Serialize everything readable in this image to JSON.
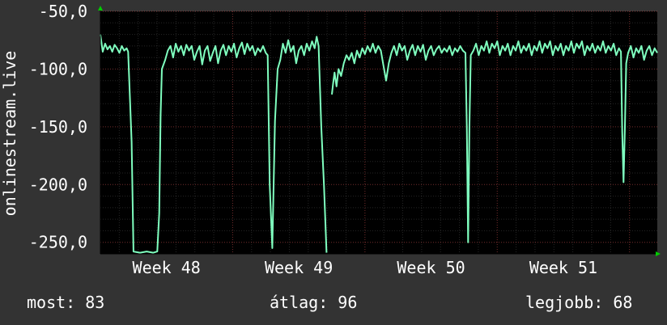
{
  "colors": {
    "background": "#333333",
    "plot_background": "#000000",
    "line": "#7fffbf",
    "grid_major": "#ff3333",
    "grid_minor": "#ffffff",
    "axis_arrow": "#00cc00",
    "text": "#ffffff"
  },
  "stats": {
    "current": "most: 83",
    "average": "átlag: 96",
    "best": "legjobb: 68"
  },
  "chart_data": {
    "type": "line",
    "title": "",
    "xlabel": "",
    "ylabel": "onlinestream.live",
    "ylim": [
      -260,
      -50
    ],
    "xlim": [
      0,
      4.21
    ],
    "grid": true,
    "y_ticks": [
      -50,
      -100,
      -150,
      -200,
      -250
    ],
    "y_tick_labels": [
      "-50,0",
      "-100,0",
      "-150,0",
      "-200,0",
      "-250,0"
    ],
    "x_ticks": [
      0.5,
      1.5,
      2.5,
      3.5
    ],
    "x_tick_labels": [
      "Week 48",
      "Week 49",
      "Week 50",
      "Week 51"
    ],
    "series": [
      {
        "values": [
          [
            0.0,
            -70
          ],
          [
            0.018,
            -85
          ],
          [
            0.036,
            -78
          ],
          [
            0.054,
            -83
          ],
          [
            0.072,
            -80
          ],
          [
            0.09,
            -85
          ],
          [
            0.108,
            -79
          ],
          [
            0.126,
            -82
          ],
          [
            0.144,
            -86
          ],
          [
            0.162,
            -80
          ],
          [
            0.18,
            -84
          ],
          [
            0.198,
            -82
          ],
          [
            0.21,
            -85
          ],
          [
            0.236,
            -163
          ],
          [
            0.25,
            -258
          ],
          [
            0.3,
            -259
          ],
          [
            0.35,
            -258
          ],
          [
            0.4,
            -259
          ],
          [
            0.43,
            -258
          ],
          [
            0.445,
            -225
          ],
          [
            0.455,
            -140
          ],
          [
            0.465,
            -100
          ],
          [
            0.49,
            -92
          ],
          [
            0.51,
            -84
          ],
          [
            0.53,
            -80
          ],
          [
            0.55,
            -90
          ],
          [
            0.57,
            -78
          ],
          [
            0.59,
            -85
          ],
          [
            0.61,
            -80
          ],
          [
            0.63,
            -88
          ],
          [
            0.65,
            -79
          ],
          [
            0.67,
            -84
          ],
          [
            0.69,
            -80
          ],
          [
            0.71,
            -92
          ],
          [
            0.73,
            -85
          ],
          [
            0.75,
            -80
          ],
          [
            0.77,
            -96
          ],
          [
            0.79,
            -84
          ],
          [
            0.81,
            -80
          ],
          [
            0.83,
            -93
          ],
          [
            0.85,
            -86
          ],
          [
            0.87,
            -80
          ],
          [
            0.89,
            -95
          ],
          [
            0.91,
            -84
          ],
          [
            0.93,
            -79
          ],
          [
            0.95,
            -88
          ],
          [
            0.97,
            -80
          ],
          [
            0.99,
            -85
          ],
          [
            1.01,
            -78
          ],
          [
            1.03,
            -90
          ],
          [
            1.05,
            -82
          ],
          [
            1.07,
            -77
          ],
          [
            1.09,
            -87
          ],
          [
            1.11,
            -78
          ],
          [
            1.13,
            -84
          ],
          [
            1.15,
            -80
          ],
          [
            1.17,
            -88
          ],
          [
            1.19,
            -82
          ],
          [
            1.21,
            -85
          ],
          [
            1.23,
            -80
          ],
          [
            1.25,
            -86
          ],
          [
            1.265,
            -88
          ],
          [
            1.28,
            -200
          ],
          [
            1.3,
            -255
          ],
          [
            1.32,
            -145
          ],
          [
            1.34,
            -100
          ],
          [
            1.36,
            -92
          ],
          [
            1.38,
            -78
          ],
          [
            1.4,
            -86
          ],
          [
            1.42,
            -75
          ],
          [
            1.44,
            -85
          ],
          [
            1.46,
            -80
          ],
          [
            1.48,
            -95
          ],
          [
            1.5,
            -84
          ],
          [
            1.52,
            -80
          ],
          [
            1.54,
            -88
          ],
          [
            1.56,
            -78
          ],
          [
            1.58,
            -84
          ],
          [
            1.6,
            -76
          ],
          [
            1.62,
            -82
          ],
          [
            1.635,
            -72
          ],
          [
            1.65,
            -80
          ],
          [
            1.67,
            -150
          ],
          [
            1.69,
            -200
          ],
          [
            1.71,
            -259
          ]
        ]
      },
      {
        "values": [
          [
            1.75,
            -122
          ],
          [
            1.76,
            -112
          ],
          [
            1.77,
            -103
          ],
          [
            1.785,
            -115
          ],
          [
            1.8,
            -100
          ],
          [
            1.82,
            -106
          ],
          [
            1.84,
            -95
          ],
          [
            1.86,
            -88
          ],
          [
            1.88,
            -92
          ],
          [
            1.9,
            -86
          ],
          [
            1.92,
            -95
          ],
          [
            1.94,
            -84
          ],
          [
            1.96,
            -90
          ],
          [
            1.98,
            -82
          ],
          [
            2.0,
            -87
          ],
          [
            2.02,
            -80
          ],
          [
            2.04,
            -85
          ],
          [
            2.06,
            -78
          ],
          [
            2.08,
            -86
          ],
          [
            2.1,
            -80
          ],
          [
            2.12,
            -84
          ],
          [
            2.14,
            -97
          ],
          [
            2.16,
            -110
          ],
          [
            2.18,
            -95
          ],
          [
            2.2,
            -86
          ],
          [
            2.22,
            -80
          ],
          [
            2.24,
            -88
          ],
          [
            2.26,
            -78
          ],
          [
            2.28,
            -84
          ],
          [
            2.3,
            -80
          ],
          [
            2.32,
            -92
          ],
          [
            2.34,
            -84
          ],
          [
            2.36,
            -79
          ],
          [
            2.38,
            -88
          ],
          [
            2.4,
            -80
          ],
          [
            2.42,
            -85
          ],
          [
            2.44,
            -79
          ],
          [
            2.46,
            -92
          ],
          [
            2.48,
            -84
          ],
          [
            2.5,
            -80
          ],
          [
            2.52,
            -88
          ],
          [
            2.54,
            -83
          ],
          [
            2.56,
            -80
          ],
          [
            2.58,
            -86
          ],
          [
            2.6,
            -82
          ],
          [
            2.62,
            -85
          ],
          [
            2.64,
            -80
          ],
          [
            2.66,
            -88
          ],
          [
            2.68,
            -82
          ],
          [
            2.7,
            -85
          ],
          [
            2.72,
            -80
          ],
          [
            2.74,
            -84
          ],
          [
            2.76,
            -86
          ],
          [
            2.77,
            -150
          ],
          [
            2.78,
            -250
          ],
          [
            2.79,
            -150
          ],
          [
            2.8,
            -88
          ],
          [
            2.82,
            -84
          ],
          [
            2.84,
            -78
          ],
          [
            2.86,
            -88
          ],
          [
            2.88,
            -80
          ],
          [
            2.9,
            -84
          ],
          [
            2.92,
            -76
          ],
          [
            2.94,
            -86
          ],
          [
            2.96,
            -78
          ],
          [
            2.98,
            -82
          ],
          [
            3.0,
            -76
          ],
          [
            3.02,
            -88
          ],
          [
            3.04,
            -80
          ],
          [
            3.06,
            -84
          ],
          [
            3.08,
            -78
          ],
          [
            3.1,
            -88
          ],
          [
            3.12,
            -80
          ],
          [
            3.14,
            -84
          ],
          [
            3.16,
            -76
          ],
          [
            3.18,
            -86
          ],
          [
            3.2,
            -80
          ],
          [
            3.22,
            -84
          ],
          [
            3.24,
            -78
          ],
          [
            3.26,
            -88
          ],
          [
            3.28,
            -80
          ],
          [
            3.3,
            -84
          ],
          [
            3.32,
            -76
          ],
          [
            3.34,
            -86
          ],
          [
            3.36,
            -78
          ],
          [
            3.38,
            -82
          ],
          [
            3.4,
            -76
          ],
          [
            3.42,
            -88
          ],
          [
            3.44,
            -80
          ],
          [
            3.46,
            -84
          ],
          [
            3.48,
            -78
          ],
          [
            3.5,
            -88
          ],
          [
            3.52,
            -80
          ],
          [
            3.54,
            -84
          ],
          [
            3.56,
            -76
          ],
          [
            3.58,
            -86
          ],
          [
            3.6,
            -78
          ],
          [
            3.62,
            -82
          ],
          [
            3.64,
            -76
          ],
          [
            3.66,
            -88
          ],
          [
            3.68,
            -80
          ],
          [
            3.7,
            -84
          ],
          [
            3.72,
            -78
          ],
          [
            3.74,
            -86
          ],
          [
            3.76,
            -80
          ],
          [
            3.78,
            -84
          ],
          [
            3.8,
            -76
          ],
          [
            3.82,
            -86
          ],
          [
            3.84,
            -80
          ],
          [
            3.86,
            -84
          ],
          [
            3.88,
            -78
          ],
          [
            3.9,
            -88
          ],
          [
            3.92,
            -82
          ],
          [
            3.935,
            -85
          ],
          [
            3.945,
            -155
          ],
          [
            3.955,
            -198
          ],
          [
            3.965,
            -150
          ],
          [
            3.975,
            -95
          ],
          [
            3.99,
            -86
          ],
          [
            4.01,
            -80
          ],
          [
            4.03,
            -90
          ],
          [
            4.05,
            -82
          ],
          [
            4.07,
            -86
          ],
          [
            4.09,
            -80
          ],
          [
            4.11,
            -92
          ],
          [
            4.13,
            -84
          ],
          [
            4.15,
            -80
          ],
          [
            4.17,
            -88
          ],
          [
            4.19,
            -82
          ],
          [
            4.21,
            -86
          ]
        ]
      }
    ]
  }
}
